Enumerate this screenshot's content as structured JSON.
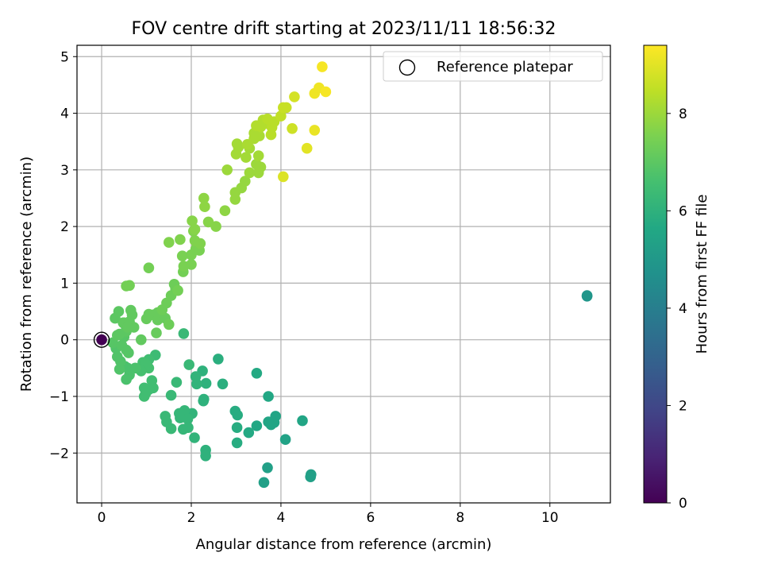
{
  "chart_data": {
    "type": "scatter",
    "title": "FOV centre drift starting at 2023/11/11 18:56:32",
    "xlabel": "Angular distance from reference (arcmin)",
    "ylabel": "Rotation from reference (arcmin)",
    "xlim": [
      -0.55,
      11.35
    ],
    "ylim": [
      -2.88,
      5.2
    ],
    "xticks": [
      0,
      2,
      4,
      6,
      8,
      10
    ],
    "yticks": [
      -2,
      -1,
      0,
      1,
      2,
      3,
      4,
      5
    ],
    "grid": true,
    "legend": {
      "label": "Reference platepar",
      "placement": "top-right"
    },
    "reference_point": {
      "x": 0,
      "y": 0
    },
    "colorbar": {
      "label": "Hours from first FF file",
      "colormap": "viridis",
      "range": [
        0,
        9.4
      ],
      "ticks": [
        0,
        2,
        4,
        6,
        8
      ]
    },
    "series": [
      {
        "marker": "circle",
        "points": [
          [
            0,
            0,
            0
          ],
          [
            10.83,
            0.77,
            4.9
          ],
          [
            10.83,
            0.78,
            4.9
          ],
          [
            4.67,
            -2.38,
            5.3
          ],
          [
            4.66,
            -2.42,
            5.3
          ],
          [
            3.7,
            -2.26,
            5.3
          ],
          [
            3.62,
            -2.52,
            5.3
          ],
          [
            4.1,
            -1.76,
            5.4
          ],
          [
            4.48,
            -1.43,
            5.5
          ],
          [
            3.78,
            -1.5,
            5.5
          ],
          [
            3.85,
            -1.46,
            5.5
          ],
          [
            3.72,
            -1.45,
            5.5
          ],
          [
            3.88,
            -1.35,
            5.5
          ],
          [
            3.72,
            -1.0,
            5.6
          ],
          [
            3.46,
            -1.52,
            5.6
          ],
          [
            3.46,
            -0.59,
            5.7
          ],
          [
            3.28,
            -1.64,
            5.7
          ],
          [
            3.02,
            -1.82,
            5.8
          ],
          [
            3.02,
            -1.55,
            5.8
          ],
          [
            3.03,
            -1.33,
            5.8
          ],
          [
            2.98,
            -1.26,
            5.8
          ],
          [
            2.6,
            -0.34,
            5.9
          ],
          [
            2.7,
            -0.78,
            5.9
          ],
          [
            2.32,
            -1.95,
            6.0
          ],
          [
            2.32,
            -2.05,
            6.0
          ],
          [
            2.27,
            -1.08,
            6.0
          ],
          [
            2.28,
            -1.05,
            6.0
          ],
          [
            2.25,
            -0.55,
            6.0
          ],
          [
            2.33,
            -0.77,
            6.0
          ],
          [
            2.1,
            -0.65,
            6.1
          ],
          [
            2.12,
            -0.78,
            6.1
          ],
          [
            2.02,
            -1.3,
            6.1
          ],
          [
            2.07,
            -1.73,
            6.1
          ],
          [
            1.85,
            -1.25,
            6.2
          ],
          [
            1.92,
            -1.4,
            6.2
          ],
          [
            1.93,
            -1.55,
            6.2
          ],
          [
            1.82,
            -1.58,
            6.2
          ],
          [
            1.75,
            -1.38,
            6.2
          ],
          [
            1.73,
            -1.3,
            6.2
          ],
          [
            1.95,
            -0.44,
            6.3
          ],
          [
            1.83,
            0.11,
            6.3
          ],
          [
            1.67,
            -0.75,
            6.3
          ],
          [
            1.55,
            -0.98,
            6.3
          ],
          [
            1.55,
            -1.57,
            6.3
          ],
          [
            1.45,
            -1.45,
            6.3
          ],
          [
            1.42,
            -1.35,
            6.3
          ],
          [
            1.2,
            -0.27,
            6.4
          ],
          [
            1.05,
            -0.35,
            6.5
          ],
          [
            1.12,
            -0.72,
            6.5
          ],
          [
            1.15,
            -0.85,
            6.5
          ],
          [
            1.05,
            -0.88,
            6.5
          ],
          [
            0.95,
            -0.85,
            6.5
          ],
          [
            0.95,
            -1.0,
            6.5
          ],
          [
            0.98,
            -0.95,
            6.5
          ],
          [
            1.05,
            -0.5,
            6.6
          ],
          [
            0.92,
            -0.4,
            6.6
          ],
          [
            0.98,
            -0.42,
            6.6
          ],
          [
            0.85,
            -0.52,
            6.6
          ],
          [
            0.88,
            -0.55,
            6.6
          ],
          [
            0.75,
            -0.5,
            6.7
          ],
          [
            0.62,
            -0.62,
            6.7
          ],
          [
            0.55,
            -0.7,
            6.7
          ],
          [
            0.58,
            -0.5,
            6.7
          ],
          [
            0.52,
            -0.47,
            6.7
          ],
          [
            0.4,
            -0.52,
            6.8
          ],
          [
            0.42,
            -0.38,
            6.8
          ],
          [
            0.35,
            -0.3,
            6.8
          ],
          [
            0.32,
            -0.15,
            6.8
          ],
          [
            0.25,
            -0.05,
            6.9
          ],
          [
            0.6,
            -0.23,
            6.9
          ],
          [
            0.55,
            -0.18,
            6.9
          ],
          [
            0.45,
            -0.1,
            6.9
          ],
          [
            0.5,
            0.05,
            6.9
          ],
          [
            0.35,
            0.08,
            7.0
          ],
          [
            0.55,
            0.22,
            7.0
          ],
          [
            0.48,
            0.3,
            7.0
          ],
          [
            0.4,
            0.1,
            7.0
          ],
          [
            0.3,
            0.38,
            7.0
          ],
          [
            0.38,
            0.5,
            7.0
          ],
          [
            0.55,
            0.15,
            7.0
          ],
          [
            0.5,
            0.3,
            7.1
          ],
          [
            0.65,
            0.52,
            7.1
          ],
          [
            0.68,
            0.44,
            7.1
          ],
          [
            0.62,
            0.32,
            7.1
          ],
          [
            0.72,
            0.22,
            7.1
          ],
          [
            0.58,
            0.22,
            7.1
          ],
          [
            0.88,
            0.0,
            7.1
          ],
          [
            1.0,
            0.37,
            7.2
          ],
          [
            1.05,
            0.45,
            7.2
          ],
          [
            1.15,
            0.44,
            7.2
          ],
          [
            1.25,
            0.35,
            7.2
          ],
          [
            1.25,
            0.48,
            7.2
          ],
          [
            1.22,
            0.12,
            7.2
          ],
          [
            1.42,
            0.38,
            7.2
          ],
          [
            1.5,
            0.27,
            7.3
          ],
          [
            1.35,
            0.53,
            7.3
          ],
          [
            1.45,
            0.65,
            7.3
          ],
          [
            1.55,
            0.78,
            7.3
          ],
          [
            1.65,
            0.9,
            7.3
          ],
          [
            1.62,
            0.98,
            7.3
          ],
          [
            1.7,
            0.87,
            7.4
          ],
          [
            0.55,
            0.95,
            7.4
          ],
          [
            0.62,
            0.96,
            7.4
          ],
          [
            1.05,
            1.27,
            7.4
          ],
          [
            1.82,
            1.2,
            7.4
          ],
          [
            1.83,
            1.3,
            7.5
          ],
          [
            1.8,
            1.48,
            7.5
          ],
          [
            2.0,
            1.33,
            7.5
          ],
          [
            2.0,
            1.5,
            7.5
          ],
          [
            2.1,
            1.6,
            7.5
          ],
          [
            2.18,
            1.58,
            7.5
          ],
          [
            2.2,
            1.7,
            7.6
          ],
          [
            2.08,
            1.75,
            7.6
          ],
          [
            2.05,
            1.92,
            7.6
          ],
          [
            1.75,
            1.77,
            7.6
          ],
          [
            1.5,
            1.72,
            7.6
          ],
          [
            2.02,
            2.1,
            7.7
          ],
          [
            2.08,
            1.95,
            7.7
          ],
          [
            2.38,
            2.08,
            7.7
          ],
          [
            2.55,
            2.0,
            7.7
          ],
          [
            2.3,
            2.35,
            7.8
          ],
          [
            2.28,
            2.5,
            7.8
          ],
          [
            2.75,
            2.28,
            7.8
          ],
          [
            2.98,
            2.48,
            7.9
          ],
          [
            2.98,
            2.6,
            7.9
          ],
          [
            3.12,
            2.68,
            7.9
          ],
          [
            3.2,
            2.8,
            7.9
          ],
          [
            3.3,
            2.95,
            8.0
          ],
          [
            3.5,
            2.95,
            8.0
          ],
          [
            3.55,
            3.05,
            8.0
          ],
          [
            3.45,
            3.1,
            8.0
          ],
          [
            2.8,
            3.0,
            8.0
          ],
          [
            3.22,
            3.22,
            8.1
          ],
          [
            3.3,
            3.38,
            8.1
          ],
          [
            3.5,
            3.25,
            8.1
          ],
          [
            3.0,
            3.28,
            8.1
          ],
          [
            3.05,
            3.4,
            8.1
          ],
          [
            3.02,
            3.46,
            8.1
          ],
          [
            3.25,
            3.45,
            8.2
          ],
          [
            3.4,
            3.55,
            8.2
          ],
          [
            3.52,
            3.6,
            8.2
          ],
          [
            3.4,
            3.65,
            8.2
          ],
          [
            3.45,
            3.78,
            8.3
          ],
          [
            3.6,
            3.88,
            8.3
          ],
          [
            3.55,
            3.76,
            8.3
          ],
          [
            3.65,
            3.82,
            8.3
          ],
          [
            3.78,
            3.62,
            8.4
          ],
          [
            3.8,
            3.75,
            8.4
          ],
          [
            3.85,
            3.85,
            8.4
          ],
          [
            3.7,
            3.9,
            8.4
          ],
          [
            4.0,
            3.95,
            8.5
          ],
          [
            4.05,
            4.1,
            8.6
          ],
          [
            4.12,
            4.1,
            8.6
          ],
          [
            4.25,
            3.73,
            8.7
          ],
          [
            4.3,
            4.29,
            8.8
          ],
          [
            4.05,
            2.88,
            8.9
          ],
          [
            4.58,
            3.38,
            9.0
          ],
          [
            4.75,
            3.7,
            9.1
          ],
          [
            4.75,
            4.35,
            9.2
          ],
          [
            4.85,
            4.45,
            9.2
          ],
          [
            5.0,
            4.38,
            9.3
          ],
          [
            4.92,
            4.82,
            9.3
          ]
        ]
      }
    ]
  }
}
